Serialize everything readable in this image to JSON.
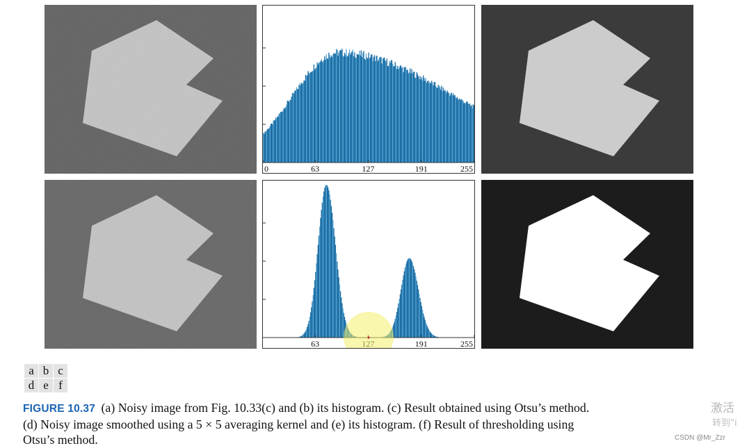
{
  "panel_layout": [
    [
      "a",
      "b",
      "c"
    ],
    [
      "d",
      "e",
      "f"
    ]
  ],
  "caption": {
    "figure_label": "FIGURE 10.37",
    "line1": "(a) Noisy image from Fig. 10.33(c) and (b) its histogram. (c) Result obtained using Otsu’s method.",
    "line2": "(d) Noisy image smoothed using a 5 × 5 averaging kernel and (e) its histogram. (f) Result of thresholding using",
    "line3": "Otsu’s method."
  },
  "watermarks": {
    "cn_line1": "激活",
    "cn_line2": "转到\"i",
    "csdn": "CSDN @Mr_Zzr"
  },
  "colors": {
    "bar_blue": "#1c6fa6",
    "bar_highlight": "#5aa7d6",
    "noisy_background": "#6b6b6b",
    "noisy_shape": "#c9c9c9",
    "black": "#1c1c1c",
    "white": "#ffffff",
    "cursor_highlight": "#f4ef6a"
  },
  "chart_data": [
    {
      "panel": "b",
      "type": "bar",
      "x_ticks": [
        "0",
        "63",
        "127",
        "191",
        "255"
      ],
      "xlim": [
        0,
        255
      ],
      "grid": false,
      "series": [
        {
          "peaks": [
            {
              "center": 90,
              "height": 0.72,
              "left_sigma": 55,
              "right_sigma": 140
            }
          ]
        }
      ]
    },
    {
      "panel": "e",
      "type": "bar",
      "x_ticks": [
        "63",
        "127",
        "191",
        "255"
      ],
      "x_tick_values": [
        63,
        127,
        191,
        255
      ],
      "xlim": [
        0,
        255
      ],
      "grid": false,
      "series": [
        {
          "peaks": [
            {
              "center": 76,
              "height": 1.0,
              "left_sigma": 10,
              "right_sigma": 11
            },
            {
              "center": 176,
              "height": 0.52,
              "left_sigma": 10,
              "right_sigma": 11
            }
          ]
        }
      ]
    }
  ]
}
